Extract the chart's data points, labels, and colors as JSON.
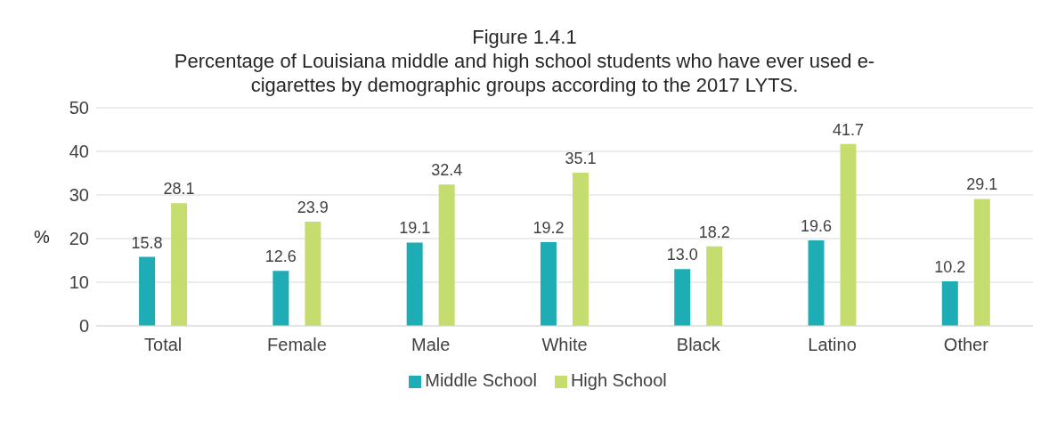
{
  "chart_data": {
    "type": "bar",
    "title": "Figure 1.4.1",
    "subtitle": "Percentage of Louisiana middle and high school students who have ever used e-cigarettes by demographic groups according to the 2017 LYTS.",
    "ylabel": "%",
    "categories": [
      "Total",
      "Female",
      "Male",
      "White",
      "Black",
      "Latino",
      "Other"
    ],
    "series": [
      {
        "name": "Middle School",
        "color": "#1fadb5",
        "values": [
          15.8,
          12.6,
          19.1,
          19.2,
          13.0,
          19.6,
          10.2
        ],
        "value_labels": [
          "15.8",
          "12.6",
          "19.1",
          "19.2",
          "13.0",
          "19.6",
          "10.2"
        ]
      },
      {
        "name": "High School",
        "color": "#c5dc6e",
        "values": [
          28.1,
          23.9,
          32.4,
          35.1,
          18.2,
          41.7,
          29.1
        ],
        "value_labels": [
          "28.1",
          "23.9",
          "32.4",
          "35.1",
          "18.2",
          "41.7",
          "29.1"
        ]
      }
    ],
    "ylim": [
      0,
      50
    ],
    "yticks": [
      0,
      10,
      20,
      30,
      40,
      50
    ],
    "grid": "y",
    "legend": "bottom"
  }
}
